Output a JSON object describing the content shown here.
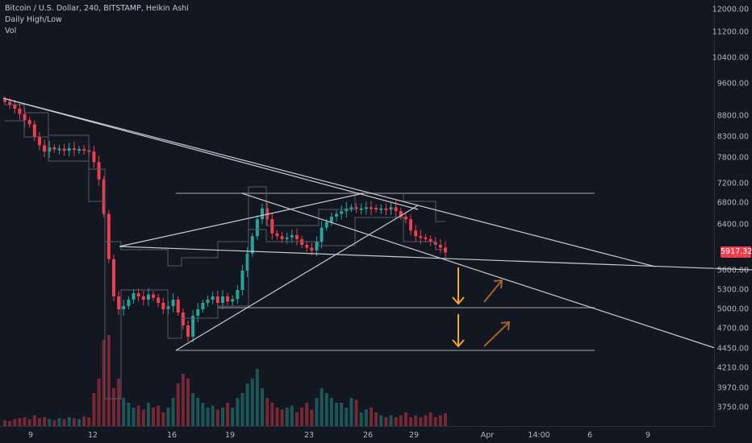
{
  "legend": {
    "symbol": "Bitcoin / U.S. Dollar, 240, BITSTAMP, Heikin Ashi",
    "indicator1": "Daily High/Low",
    "indicator2": "Vol"
  },
  "colors": {
    "background": "#131722",
    "up": "#26a69a",
    "down": "#ef3f4e",
    "trendline": "#c9cbd1",
    "level": "#5d606b",
    "arrow_down": "#f5a623",
    "arrow_up": "#a0642a"
  },
  "chart_data": {
    "type": "candlestick",
    "price_axis": {
      "ticks": [
        "12000.00",
        "11200.00",
        "10400.00",
        "9600.00",
        "8800.00",
        "8300.00",
        "7800.00",
        "7200.00",
        "6800.00",
        "6400.00",
        "5600.00",
        "5300.00",
        "5000.00",
        "4700.00",
        "4450.00",
        "4210.00",
        "3970.00",
        "3750.00"
      ],
      "last_price": "5917.32"
    },
    "time_axis": {
      "ticks": [
        "9",
        "12",
        "16",
        "19",
        "23",
        "26",
        "29",
        "Apr",
        "14:00",
        "6",
        "9"
      ]
    },
    "closes": [
      9150,
      9080,
      8980,
      8850,
      8700,
      8600,
      8300,
      8100,
      7950,
      8050,
      8000,
      8020,
      7970,
      8030,
      7990,
      8010,
      7980,
      7950,
      7700,
      7300,
      6600,
      5800,
      5200,
      5000,
      5050,
      5150,
      5250,
      5200,
      5150,
      5230,
      5180,
      5100,
      5000,
      5050,
      5150,
      4950,
      4750,
      4600,
      4900,
      5000,
      5100,
      5150,
      5200,
      5100,
      5200,
      5120,
      5160,
      5300,
      5600,
      5900,
      6200,
      6500,
      6700,
      6500,
      6250,
      6200,
      6150,
      6180,
      6220,
      6150,
      6050,
      6000,
      5950,
      6100,
      6350,
      6450,
      6550,
      6600,
      6650,
      6700,
      6720,
      6690,
      6700,
      6720,
      6710,
      6690,
      6700,
      6680,
      6720,
      6650,
      6550,
      6500,
      6300,
      6200,
      6180,
      6150,
      6100,
      6050,
      6000,
      5917
    ],
    "volume": [
      0.07,
      0.06,
      0.08,
      0.09,
      0.1,
      0.08,
      0.12,
      0.09,
      0.1,
      0.08,
      0.07,
      0.09,
      0.08,
      0.1,
      0.09,
      0.08,
      0.11,
      0.1,
      0.35,
      0.5,
      0.9,
      0.95,
      0.4,
      0.5,
      0.3,
      0.25,
      0.2,
      0.22,
      0.18,
      0.25,
      0.2,
      0.22,
      0.15,
      0.2,
      0.3,
      0.45,
      0.55,
      0.5,
      0.35,
      0.3,
      0.25,
      0.2,
      0.22,
      0.18,
      0.2,
      0.25,
      0.2,
      0.3,
      0.35,
      0.45,
      0.5,
      0.6,
      0.4,
      0.3,
      0.25,
      0.2,
      0.18,
      0.2,
      0.22,
      0.15,
      0.2,
      0.25,
      0.18,
      0.3,
      0.4,
      0.35,
      0.3,
      0.25,
      0.25,
      0.2,
      0.3,
      0.28,
      0.15,
      0.18,
      0.2,
      0.15,
      0.12,
      0.1,
      0.12,
      0.1,
      0.12,
      0.15,
      0.1,
      0.12,
      0.1,
      0.12,
      0.15,
      0.1,
      0.12,
      0.14
    ],
    "annotations": {
      "arrows_down": 2,
      "arrows_up": 2
    }
  }
}
